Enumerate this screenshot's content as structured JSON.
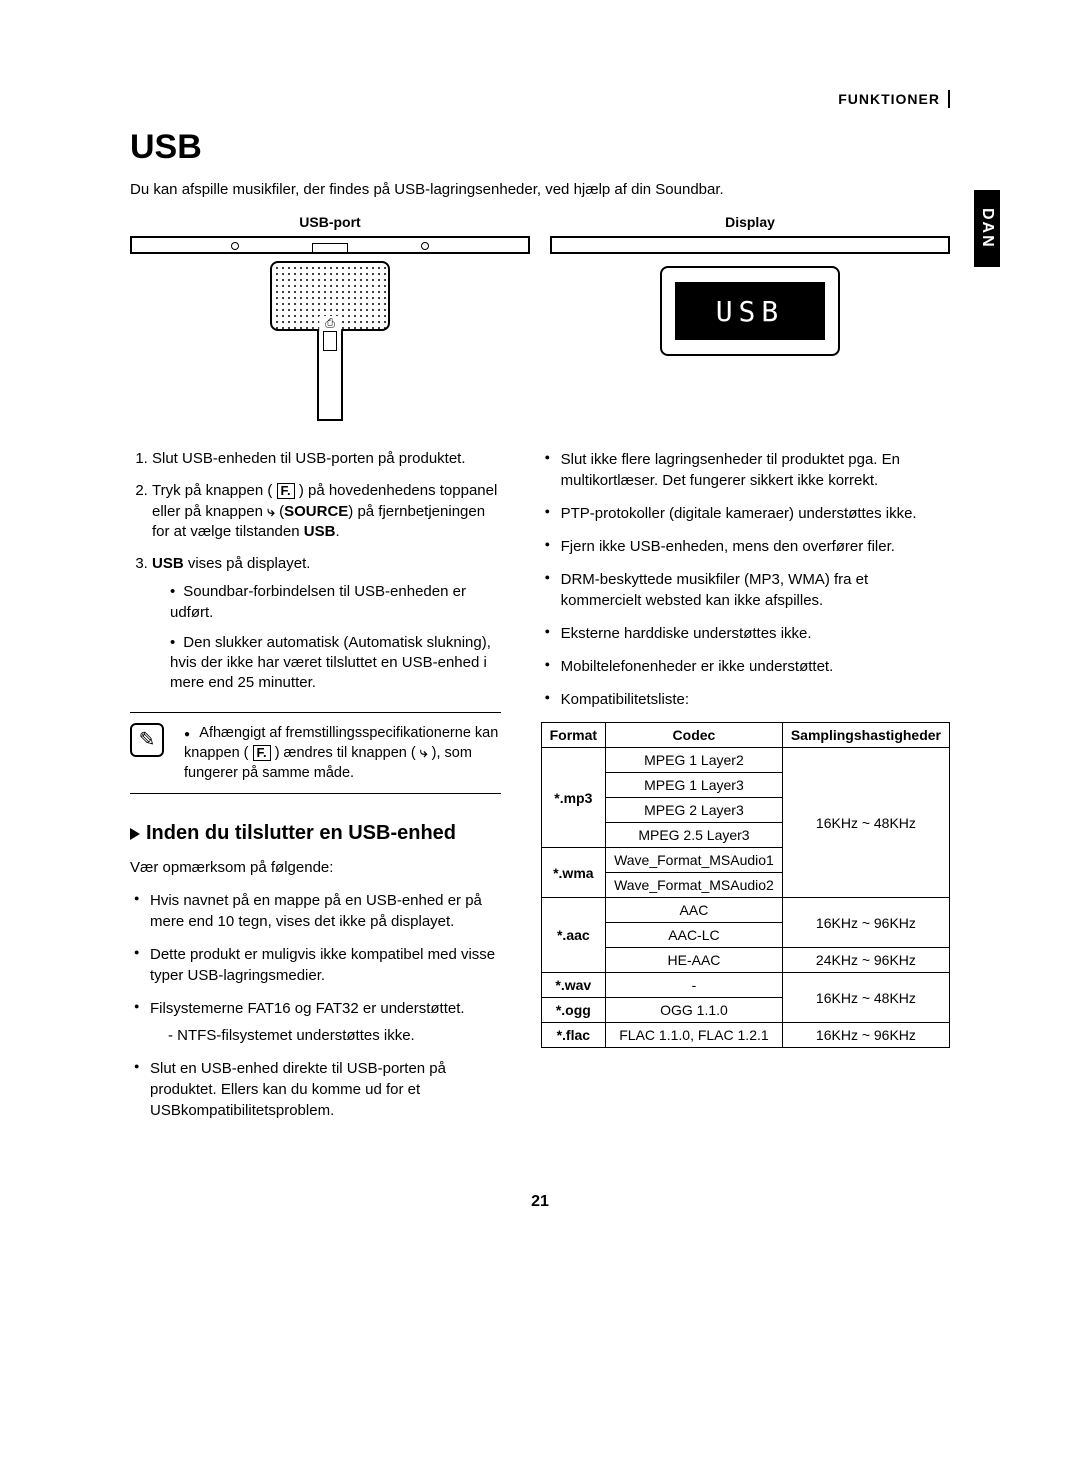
{
  "header": {
    "section_label": "FUNKTIONER",
    "side_tab": "DAN"
  },
  "title": "USB",
  "intro": "Du kan afspille musikfiler, der findes på USB-lagringsenheder, ved hjælp af din Soundbar.",
  "diagrams": {
    "usb_port_label": "USB-port",
    "display_label": "Display",
    "display_text": "USB"
  },
  "steps": {
    "s1": "Slut USB-enheden til USB-porten på produktet.",
    "s2a": "Tryk på knappen (",
    "s2b": ") på hovedenhedens toppanel eller på knappen ",
    "s2c": " (",
    "s2_source": "SOURCE",
    "s2d": ") på fjernbetjeningen for at vælge tilstanden ",
    "s2_usb": "USB",
    "s2e": ".",
    "s3a": "USB",
    "s3b": " vises på displayet.",
    "s3_sub1": "Soundbar-forbindelsen til USB-enheden er udført.",
    "s3_sub2": "Den slukker automatisk (Automatisk slukning), hvis der ikke har været tilsluttet en USB-enhed i mere end 25 minutter."
  },
  "note": {
    "line_a": "Afhængigt af fremstillingsspecifikationerne kan knappen (",
    "line_b": ") ændres til knappen (",
    "line_c": "), som fungerer på samme måde."
  },
  "subhead": "Inden du tilslutter en USB-enhed",
  "preconnect_intro": "Vær opmærksom på følgende:",
  "left_bullets": {
    "b1": "Hvis navnet på en mappe på en USB-enhed er på mere end 10 tegn, vises det ikke på displayet.",
    "b2": "Dette produkt er muligvis ikke kompatibel med visse typer USB-lagringsmedier.",
    "b3": "Filsystemerne FAT16 og FAT32 er understøttet.",
    "b3_dash": "NTFS-filsystemet understøttes ikke.",
    "b4": "Slut en USB-enhed direkte til USB-porten på produktet. Ellers kan du komme ud for et USBkompatibilitetsproblem."
  },
  "right_bullets": {
    "b1": "Slut ikke flere lagringsenheder til produktet pga. En multikortlæser. Det fungerer sikkert ikke korrekt.",
    "b2": "PTP-protokoller (digitale kameraer) understøttes ikke.",
    "b3": "Fjern ikke USB-enheden, mens den overfører filer.",
    "b4": "DRM-beskyttede musikfiler (MP3, WMA) fra et kommercielt websted kan ikke afspilles.",
    "b5": "Eksterne harddiske understøttes ikke.",
    "b6": "Mobiltelefonenheder er ikke understøttet.",
    "b7": "Kompatibilitetsliste:"
  },
  "table": {
    "headers": {
      "format": "Format",
      "codec": "Codec",
      "sample": "Samplingshastigheder"
    },
    "mp3": {
      "format": "*.mp3",
      "codecs": [
        "MPEG 1 Layer2",
        "MPEG 1 Layer3",
        "MPEG 2 Layer3",
        "MPEG 2.5 Layer3"
      ]
    },
    "wma": {
      "format": "*.wma",
      "codecs": [
        "Wave_Format_MSAudio1",
        "Wave_Format_MSAudio2"
      ]
    },
    "sample_48": "16KHz ~ 48KHz",
    "aac": {
      "format": "*.aac",
      "codecs": [
        "AAC",
        "AAC-LC",
        "HE-AAC"
      ],
      "sample1": "16KHz ~ 96KHz",
      "sample2": "24KHz ~ 96KHz"
    },
    "wav": {
      "format": "*.wav",
      "codec": "-"
    },
    "ogg": {
      "format": "*.ogg",
      "codec": "OGG 1.1.0"
    },
    "wav_ogg_sample": "16KHz ~ 48KHz",
    "flac": {
      "format": "*.flac",
      "codec": "FLAC 1.1.0, FLAC 1.2.1",
      "sample": "16KHz ~ 96KHz"
    }
  },
  "page_number": "21"
}
